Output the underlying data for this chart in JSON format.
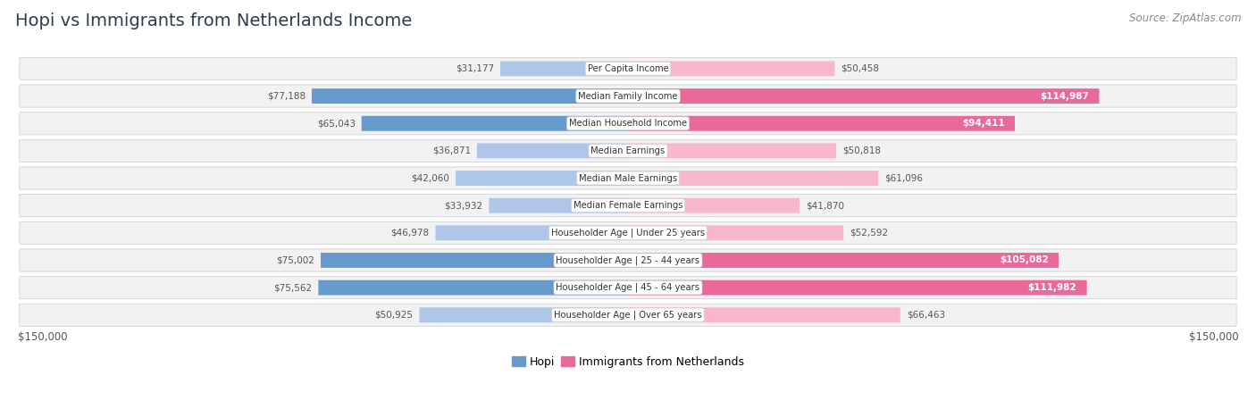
{
  "title": "Hopi vs Immigrants from Netherlands Income",
  "source": "Source: ZipAtlas.com",
  "categories": [
    "Per Capita Income",
    "Median Family Income",
    "Median Household Income",
    "Median Earnings",
    "Median Male Earnings",
    "Median Female Earnings",
    "Householder Age | Under 25 years",
    "Householder Age | 25 - 44 years",
    "Householder Age | 45 - 64 years",
    "Householder Age | Over 65 years"
  ],
  "hopi_values": [
    31177,
    77188,
    65043,
    36871,
    42060,
    33932,
    46978,
    75002,
    75562,
    50925
  ],
  "immigrants_values": [
    50458,
    114987,
    94411,
    50818,
    61096,
    41870,
    52592,
    105082,
    111982,
    66463
  ],
  "hopi_labels": [
    "$31,177",
    "$77,188",
    "$65,043",
    "$36,871",
    "$42,060",
    "$33,932",
    "$46,978",
    "$75,002",
    "$75,562",
    "$50,925"
  ],
  "immigrants_labels": [
    "$50,458",
    "$114,987",
    "$94,411",
    "$50,818",
    "$61,096",
    "$41,870",
    "$52,592",
    "$105,082",
    "$111,982",
    "$66,463"
  ],
  "hopi_color_light": "#aec6e8",
  "hopi_color_dark": "#6699cc",
  "immigrants_color_light": "#f7b8cc",
  "immigrants_color_dark": "#e8699a",
  "max_value": 150000,
  "background_color": "#ffffff",
  "row_bg_color": "#f2f2f2",
  "row_border_color": "#d0d0d0",
  "label_color_outside": "#555555",
  "label_color_white": "#ffffff",
  "title_fontsize": 14,
  "source_fontsize": 8.5,
  "legend_label_hopi": "Hopi",
  "legend_label_immigrants": "Immigrants from Netherlands",
  "xlabel_left": "$150,000",
  "xlabel_right": "$150,000",
  "imm_white_threshold": 80000,
  "hopi_dark_threshold": 60000
}
